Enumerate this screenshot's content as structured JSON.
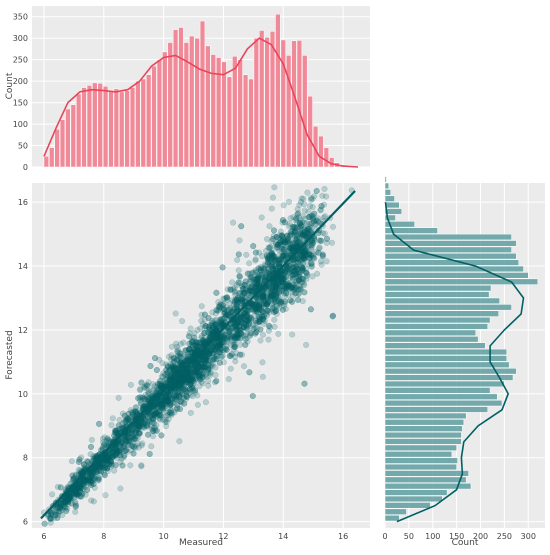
{
  "chart_data": [
    {
      "panel": "top-marginal",
      "type": "bar",
      "ylabel": "Count",
      "yticks": [
        0,
        50,
        100,
        150,
        200,
        250,
        300,
        350
      ],
      "ylim": [
        0,
        375
      ],
      "xlim": [
        5.6,
        16.9
      ],
      "bin_start": 6.0,
      "bin_width": 0.18,
      "values": [
        25,
        45,
        88,
        110,
        135,
        145,
        170,
        185,
        190,
        196,
        195,
        188,
        178,
        182,
        175,
        178,
        185,
        200,
        205,
        215,
        235,
        250,
        268,
        290,
        320,
        325,
        290,
        305,
        300,
        340,
        282,
        262,
        255,
        245,
        210,
        258,
        250,
        215,
        205,
        300,
        318,
        302,
        316,
        356,
        296,
        260,
        294,
        295,
        260,
        165,
        95,
        72,
        45,
        22,
        10,
        5,
        3,
        2,
        1
      ],
      "kde": [
        [
          6.0,
          25
        ],
        [
          6.4,
          90
        ],
        [
          6.8,
          150
        ],
        [
          7.2,
          175
        ],
        [
          7.6,
          180
        ],
        [
          8.0,
          178
        ],
        [
          8.4,
          175
        ],
        [
          8.8,
          180
        ],
        [
          9.2,
          200
        ],
        [
          9.6,
          235
        ],
        [
          10.0,
          255
        ],
        [
          10.4,
          260
        ],
        [
          10.8,
          245
        ],
        [
          11.2,
          228
        ],
        [
          11.6,
          218
        ],
        [
          12.0,
          215
        ],
        [
          12.4,
          230
        ],
        [
          12.8,
          275
        ],
        [
          13.2,
          300
        ],
        [
          13.6,
          285
        ],
        [
          14.0,
          240
        ],
        [
          14.4,
          160
        ],
        [
          14.8,
          75
        ],
        [
          15.2,
          25
        ],
        [
          15.6,
          8
        ],
        [
          16.0,
          2
        ],
        [
          16.5,
          0
        ]
      ]
    },
    {
      "panel": "joint-scatter",
      "type": "scatter",
      "xlabel": "Measured",
      "ylabel": "Forecasted",
      "xticks": [
        6,
        8,
        10,
        12,
        14,
        16
      ],
      "yticks": [
        6,
        8,
        10,
        12,
        14,
        16
      ],
      "xlim": [
        5.6,
        16.9
      ],
      "ylim": [
        5.8,
        16.6
      ],
      "point_count": 4200,
      "regression_line": [
        [
          5.9,
          6.1
        ],
        [
          16.4,
          16.35
        ]
      ]
    },
    {
      "panel": "right-marginal",
      "type": "bar",
      "orientation": "horizontal",
      "xlabel": "Count",
      "xticks": [
        0,
        50,
        100,
        150,
        200,
        250,
        300
      ],
      "xlim": [
        0,
        335
      ],
      "bin_start": 6.0,
      "bin_width": 0.2,
      "values": [
        30,
        45,
        95,
        120,
        130,
        180,
        170,
        175,
        150,
        152,
        140,
        150,
        160,
        160,
        162,
        165,
        170,
        215,
        245,
        235,
        220,
        250,
        268,
        275,
        260,
        255,
        255,
        210,
        195,
        190,
        215,
        220,
        238,
        265,
        240,
        218,
        222,
        320,
        300,
        290,
        280,
        275,
        265,
        275,
        265,
        110,
        62,
        22,
        35,
        30,
        20,
        12,
        8,
        3
      ],
      "kde": [
        [
          6.0,
          25
        ],
        [
          6.5,
          105
        ],
        [
          7.0,
          150
        ],
        [
          7.5,
          162
        ],
        [
          8.0,
          160
        ],
        [
          8.5,
          165
        ],
        [
          9.0,
          195
        ],
        [
          9.5,
          245
        ],
        [
          10.0,
          258
        ],
        [
          10.5,
          240
        ],
        [
          11.0,
          220
        ],
        [
          11.5,
          220
        ],
        [
          12.0,
          250
        ],
        [
          12.5,
          285
        ],
        [
          13.0,
          290
        ],
        [
          13.5,
          265
        ],
        [
          14.0,
          190
        ],
        [
          14.5,
          60
        ],
        [
          15.0,
          18
        ],
        [
          15.5,
          5
        ],
        [
          16.0,
          1
        ]
      ]
    }
  ]
}
